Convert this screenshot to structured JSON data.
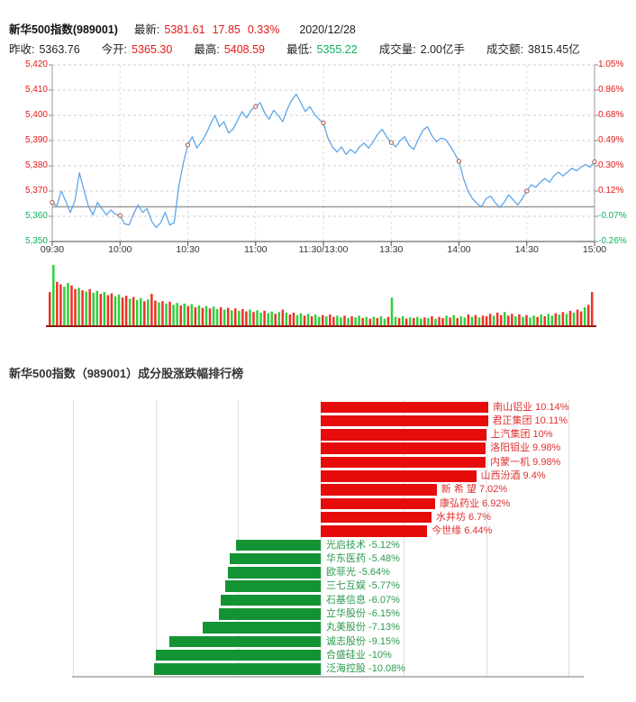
{
  "header": {
    "title": "新华500指数(989001)",
    "latest_label": "最新:",
    "latest_value": "5381.61",
    "change": "17.85",
    "change_pct": "0.33%",
    "date": "2020/12/28",
    "prev_close_label": "昨收:",
    "prev_close": "5363.76",
    "open_label": "今开:",
    "open": "5365.30",
    "high_label": "最高:",
    "high": "5408.59",
    "low_label": "最低:",
    "low": "5355.22",
    "volume_label": "成交量:",
    "volume": "2.00亿手",
    "turnover_label": "成交额:",
    "turnover": "3815.45亿"
  },
  "colors": {
    "up_text": "#e61717",
    "down_text": "#0db25c",
    "line_blue": "#5EA6E8",
    "marker_stroke": "#a65148",
    "prev_close_line": "#999999",
    "vol_up": "#2ed13a",
    "vol_down": "#ef3124",
    "vol_axis": "#8c1c12",
    "rank_up_bar": "#e60c0c",
    "rank_down_bar": "#149334"
  },
  "chart_data": [
    {
      "type": "line",
      "name": "index-intraday",
      "x_ticks": [
        "09:30",
        "10:00",
        "10:30",
        "11:00",
        "11:30/13:00",
        "13:30",
        "14:00",
        "14:30",
        "15:00"
      ],
      "y_ticks_price": [
        "5,420",
        "5,410",
        "5,400",
        "5,390",
        "5,380",
        "5,370",
        "5,360",
        "5,350"
      ],
      "y_ticks_pct": [
        "1.05%",
        "0.86%",
        "0.68%",
        "0.49%",
        "0.30%",
        "0.12%",
        "-0.07%",
        "-0.26%"
      ],
      "ylim": [
        5350,
        5420
      ],
      "prev_close": 5363.76,
      "minutes_total": 240,
      "sample_step_min": 2,
      "prices_2min": [
        5365.5,
        5364.0,
        5370.0,
        5366.0,
        5361.5,
        5366.0,
        5377.2,
        5370.5,
        5364.0,
        5360.5,
        5365.5,
        5363.0,
        5360.5,
        5362.5,
        5360.8,
        5360.3,
        5357.0,
        5356.5,
        5361.0,
        5364.5,
        5361.5,
        5363.0,
        5358.0,
        5355.5,
        5357.5,
        5361.5,
        5356.5,
        5357.5,
        5372.0,
        5381.0,
        5388.3,
        5391.5,
        5387.0,
        5389.5,
        5392.5,
        5396.5,
        5400.0,
        5395.5,
        5397.5,
        5393.0,
        5394.5,
        5398.0,
        5401.5,
        5399.0,
        5402.0,
        5403.5,
        5405.0,
        5401.0,
        5398.5,
        5402.0,
        5400.0,
        5397.5,
        5402.5,
        5406.0,
        5408.4,
        5405.0,
        5401.5,
        5403.5,
        5400.5,
        5398.5,
        5397.0,
        5391.0,
        5387.5,
        5385.5,
        5387.5,
        5384.5,
        5386.5,
        5385.0,
        5387.5,
        5389.0,
        5387.0,
        5389.5,
        5392.5,
        5394.5,
        5391.5,
        5389.2,
        5387.5,
        5390.0,
        5391.5,
        5388.0,
        5386.5,
        5390.5,
        5394.0,
        5395.5,
        5392.0,
        5389.5,
        5391.0,
        5390.5,
        5388.0,
        5385.0,
        5381.8,
        5375.0,
        5370.0,
        5367.0,
        5365.0,
        5363.8,
        5367.0,
        5368.0,
        5365.5,
        5363.5,
        5365.5,
        5368.5,
        5366.5,
        5364.5,
        5367.0,
        5370.0,
        5372.5,
        5371.5,
        5373.5,
        5375.0,
        5373.5,
        5376.0,
        5377.5,
        5376.0,
        5377.5,
        5379.0,
        5378.0,
        5379.5,
        5380.5,
        5379.5,
        5381.6
      ],
      "marker_every_nth": 15
    },
    {
      "type": "bar",
      "name": "minute-volume",
      "values": [
        55,
        100,
        72,
        68,
        64,
        70,
        66,
        60,
        62,
        58,
        56,
        60,
        54,
        57,
        52,
        55,
        50,
        53,
        48,
        51,
        46,
        49,
        44,
        47,
        42,
        45,
        40,
        43,
        52,
        41,
        38,
        40,
        36,
        39,
        34,
        37,
        33,
        36,
        32,
        35,
        30,
        33,
        29,
        32,
        28,
        31,
        27,
        30,
        26,
        29,
        25,
        28,
        24,
        27,
        23,
        26,
        22,
        25,
        21,
        24,
        20,
        23,
        19,
        22,
        26,
        21,
        18,
        21,
        17,
        20,
        16,
        19,
        15,
        18,
        14,
        17,
        15,
        18,
        14,
        16,
        13,
        16,
        12,
        15,
        13,
        16,
        12,
        14,
        11,
        14,
        12,
        15,
        11,
        14,
        46,
        14,
        12,
        15,
        11,
        13,
        12,
        14,
        11,
        13,
        12,
        15,
        11,
        14,
        12,
        16,
        13,
        17,
        12,
        15,
        13,
        18,
        14,
        17,
        13,
        16,
        15,
        19,
        16,
        21,
        17,
        22,
        16,
        19,
        15,
        18,
        14,
        17,
        13,
        16,
        14,
        18,
        15,
        19,
        16,
        20,
        18,
        22,
        19,
        24,
        21,
        26,
        23,
        30,
        34,
        55
      ],
      "directions": [
        "dudduuddud",
        "uduududduu",
        "dduduududd",
        "ududuududu",
        "dududuudud",
        "ududduduud",
        "uudududduu",
        "duduududdu",
        "ududuududu",
        "duuduududu",
        "duudududdu",
        "duduududud",
        "ddudduddud",
        "uduududuud",
        "udududdudd"
      ]
    },
    {
      "type": "bar",
      "name": "constituent-ranking",
      "title": "新华500指数（989001）成分股涨跌幅排行榜",
      "axis_pct_gridlines": [
        -15,
        -10,
        -5,
        0,
        5,
        10,
        15
      ],
      "categories": [
        "南山铝业",
        "君正集团",
        "上汽集团",
        "洛阳钼业",
        "内蒙一机",
        "山西汾酒",
        "新希望",
        "康弘药业",
        "水井坊",
        "今世缘",
        "光启技术",
        "华东医药",
        "欧菲光",
        "三七互娱",
        "石基信息",
        "立华股份",
        "丸美股份",
        "诚志股份",
        "合盛硅业",
        "泛海控股"
      ],
      "values": [
        10.14,
        10.11,
        10,
        9.98,
        9.98,
        9.4,
        7.02,
        6.92,
        6.7,
        6.44,
        -5.12,
        -5.48,
        -5.64,
        -5.77,
        -6.07,
        -6.15,
        -7.13,
        -9.15,
        -10,
        -10.08
      ],
      "labels": [
        "南山铝业 10.14%",
        "君正集团 10.11%",
        "上汽集团 10%",
        "洛阳钼业 9.98%",
        "内蒙一机 9.98%",
        "山西汾酒 9.4%",
        "新 希 望 7.02%",
        "康弘药业 6.92%",
        "水井坊  6.7%",
        "今世缘  6.44%",
        "光启技术 -5.12%",
        "华东医药 -5.48%",
        "欧菲光 -5.64%",
        "三七互娱 -5.77%",
        "石基信息 -6.07%",
        "立华股份 -6.15%",
        "丸美股份 -7.13%",
        "诚志股份 -9.15%",
        "合盛硅业 -10%",
        "泛海控股 -10.08%"
      ]
    }
  ]
}
